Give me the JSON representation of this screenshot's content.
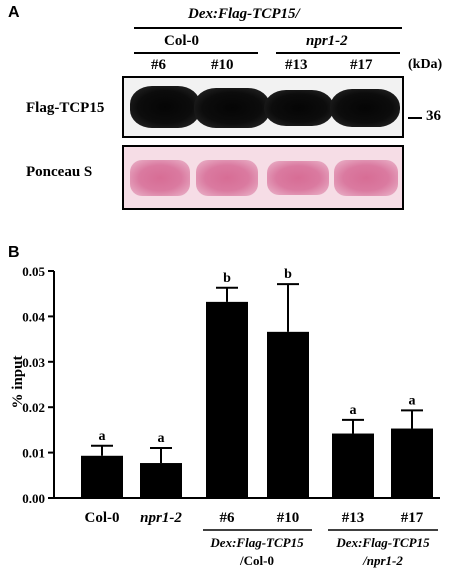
{
  "panel_a": {
    "letter": "A",
    "construct_label": "Dex:Flag-TCP15/",
    "groups": [
      {
        "name": "Col-0",
        "italic": false
      },
      {
        "name": "npr1-2",
        "italic": true
      }
    ],
    "lanes": [
      "#6",
      "#10",
      "#13",
      "#17"
    ],
    "kda_label": "(kDa)",
    "flag_label": "Flag-TCP15",
    "ponceau_label": "Ponceau S",
    "marker_label": "36"
  },
  "panel_b": {
    "letter": "B"
  },
  "colors": {
    "bar": "#000000",
    "flag_band": "#0a0a0a",
    "ponceau_band": "#d9749b",
    "ponceau_background": "#f6dde6"
  },
  "chart_data": {
    "type": "bar",
    "ylabel": "% input",
    "ylim": [
      0,
      0.05
    ],
    "yticks": [
      "0.00",
      "0.01",
      "0.02",
      "0.03",
      "0.04",
      "0.05"
    ],
    "categories": [
      {
        "label": "Col-0",
        "italic": false
      },
      {
        "label": "npr1-2",
        "italic": true
      },
      {
        "label": "#6",
        "italic": false
      },
      {
        "label": "#10",
        "italic": false
      },
      {
        "label": "#13",
        "italic": false
      },
      {
        "label": "#17",
        "italic": false
      }
    ],
    "values": [
      0.0093,
      0.0077,
      0.0432,
      0.0366,
      0.0142,
      0.0153
    ],
    "errors": [
      0.0022,
      0.0033,
      0.0031,
      0.0105,
      0.003,
      0.004
    ],
    "letters": [
      "a",
      "a",
      "b",
      "b",
      "a",
      "a"
    ],
    "group_labels": [
      {
        "line1": "Dex:Flag-TCP15",
        "line2": "/Col-0"
      },
      {
        "line1": "Dex:Flag-TCP15",
        "line2": "/npr1-2"
      }
    ],
    "grid": false
  }
}
